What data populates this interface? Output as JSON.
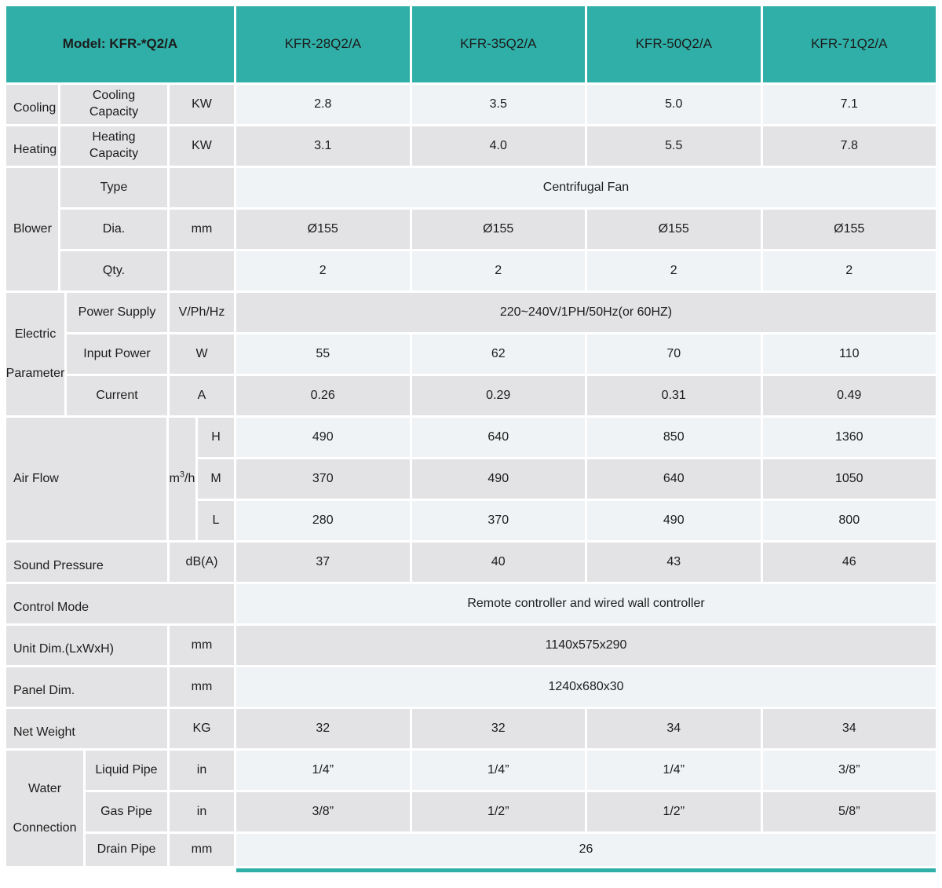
{
  "colors": {
    "teal": "#2fafa7",
    "row_light": "#eff3f6",
    "row_gray": "#e3e3e5",
    "text": "#1c1c1c"
  },
  "header": {
    "model": "Model: KFR-*Q2/A",
    "models": [
      "KFR-28Q2/A",
      "KFR-35Q2/A",
      "KFR-50Q2/A",
      "KFR-71Q2/A"
    ]
  },
  "capacity": {
    "rows": [
      {
        "group": "Cooling",
        "name": "Cooling\nCapacity",
        "unit": "KW",
        "values": [
          "2.8",
          "3.5",
          "5.0",
          "7.1"
        ]
      },
      {
        "group": "Heating",
        "name": "Heating\nCapacity",
        "unit": "KW",
        "values": [
          "3.1",
          "4.0",
          "5.5",
          "7.8"
        ]
      }
    ]
  },
  "blower": {
    "group": "Blower",
    "type_row": {
      "name": "Type",
      "unit": "",
      "value": "Centrifugal Fan"
    },
    "dia_row": {
      "name": "Dia.",
      "unit": "mm",
      "values": [
        "Ø155",
        "Ø155",
        "Ø155",
        "Ø155"
      ]
    },
    "qty_row": {
      "name": "Qty.",
      "unit": "",
      "values": [
        "2",
        "2",
        "2",
        "2"
      ]
    }
  },
  "electric": {
    "group_line1": "Electric",
    "group_line2": "Parameter",
    "power_supply": {
      "name": "Power Supply",
      "unit": "V/Ph/Hz",
      "value": "220~240V/1PH/50Hz(or 60HZ)"
    },
    "input_power": {
      "name": "Input Power",
      "unit": "W",
      "values": [
        "55",
        "62",
        "70",
        "110"
      ]
    },
    "current": {
      "name": "Current",
      "unit": "A",
      "values": [
        "0.26",
        "0.29",
        "0.31",
        "0.49"
      ]
    }
  },
  "air_flow": {
    "group": "Air Flow",
    "unit_parts": {
      "base": "m",
      "sup": "3",
      "rest": "/h"
    },
    "rows": [
      {
        "name": "H",
        "values": [
          "490",
          "640",
          "850",
          "1360"
        ]
      },
      {
        "name": "M",
        "values": [
          "370",
          "490",
          "640",
          "1050"
        ]
      },
      {
        "name": "L",
        "values": [
          "280",
          "370",
          "490",
          "800"
        ]
      }
    ]
  },
  "sound_pressure": {
    "label": "Sound Pressure",
    "unit": "dB(A)",
    "values": [
      "37",
      "40",
      "43",
      "46"
    ]
  },
  "control_mode": {
    "label": "Control Mode",
    "value": "Remote controller and wired wall controller"
  },
  "dimensions": {
    "unit_dim": {
      "label": "Unit Dim.(LxWxH)",
      "unit": "mm",
      "value": "1140x575x290"
    },
    "panel_dim": {
      "label": "Panel Dim.",
      "unit": "mm",
      "value": "1240x680x30"
    },
    "net_weight": {
      "label": "Net Weight",
      "unit": "KG",
      "values": [
        "32",
        "32",
        "34",
        "34"
      ]
    }
  },
  "water": {
    "group_line1": "Water",
    "group_line2": "Connection",
    "liquid": {
      "name": "Liquid Pipe",
      "unit": "in",
      "values": [
        "1/4”",
        "1/4”",
        "1/4”",
        "3/8”"
      ]
    },
    "gas": {
      "name": "Gas Pipe",
      "unit": "in",
      "values": [
        "3/8”",
        "1/2”",
        "1/2”",
        "5/8”"
      ]
    },
    "drain": {
      "name": "Drain Pipe",
      "unit": "mm",
      "value": "26"
    }
  }
}
